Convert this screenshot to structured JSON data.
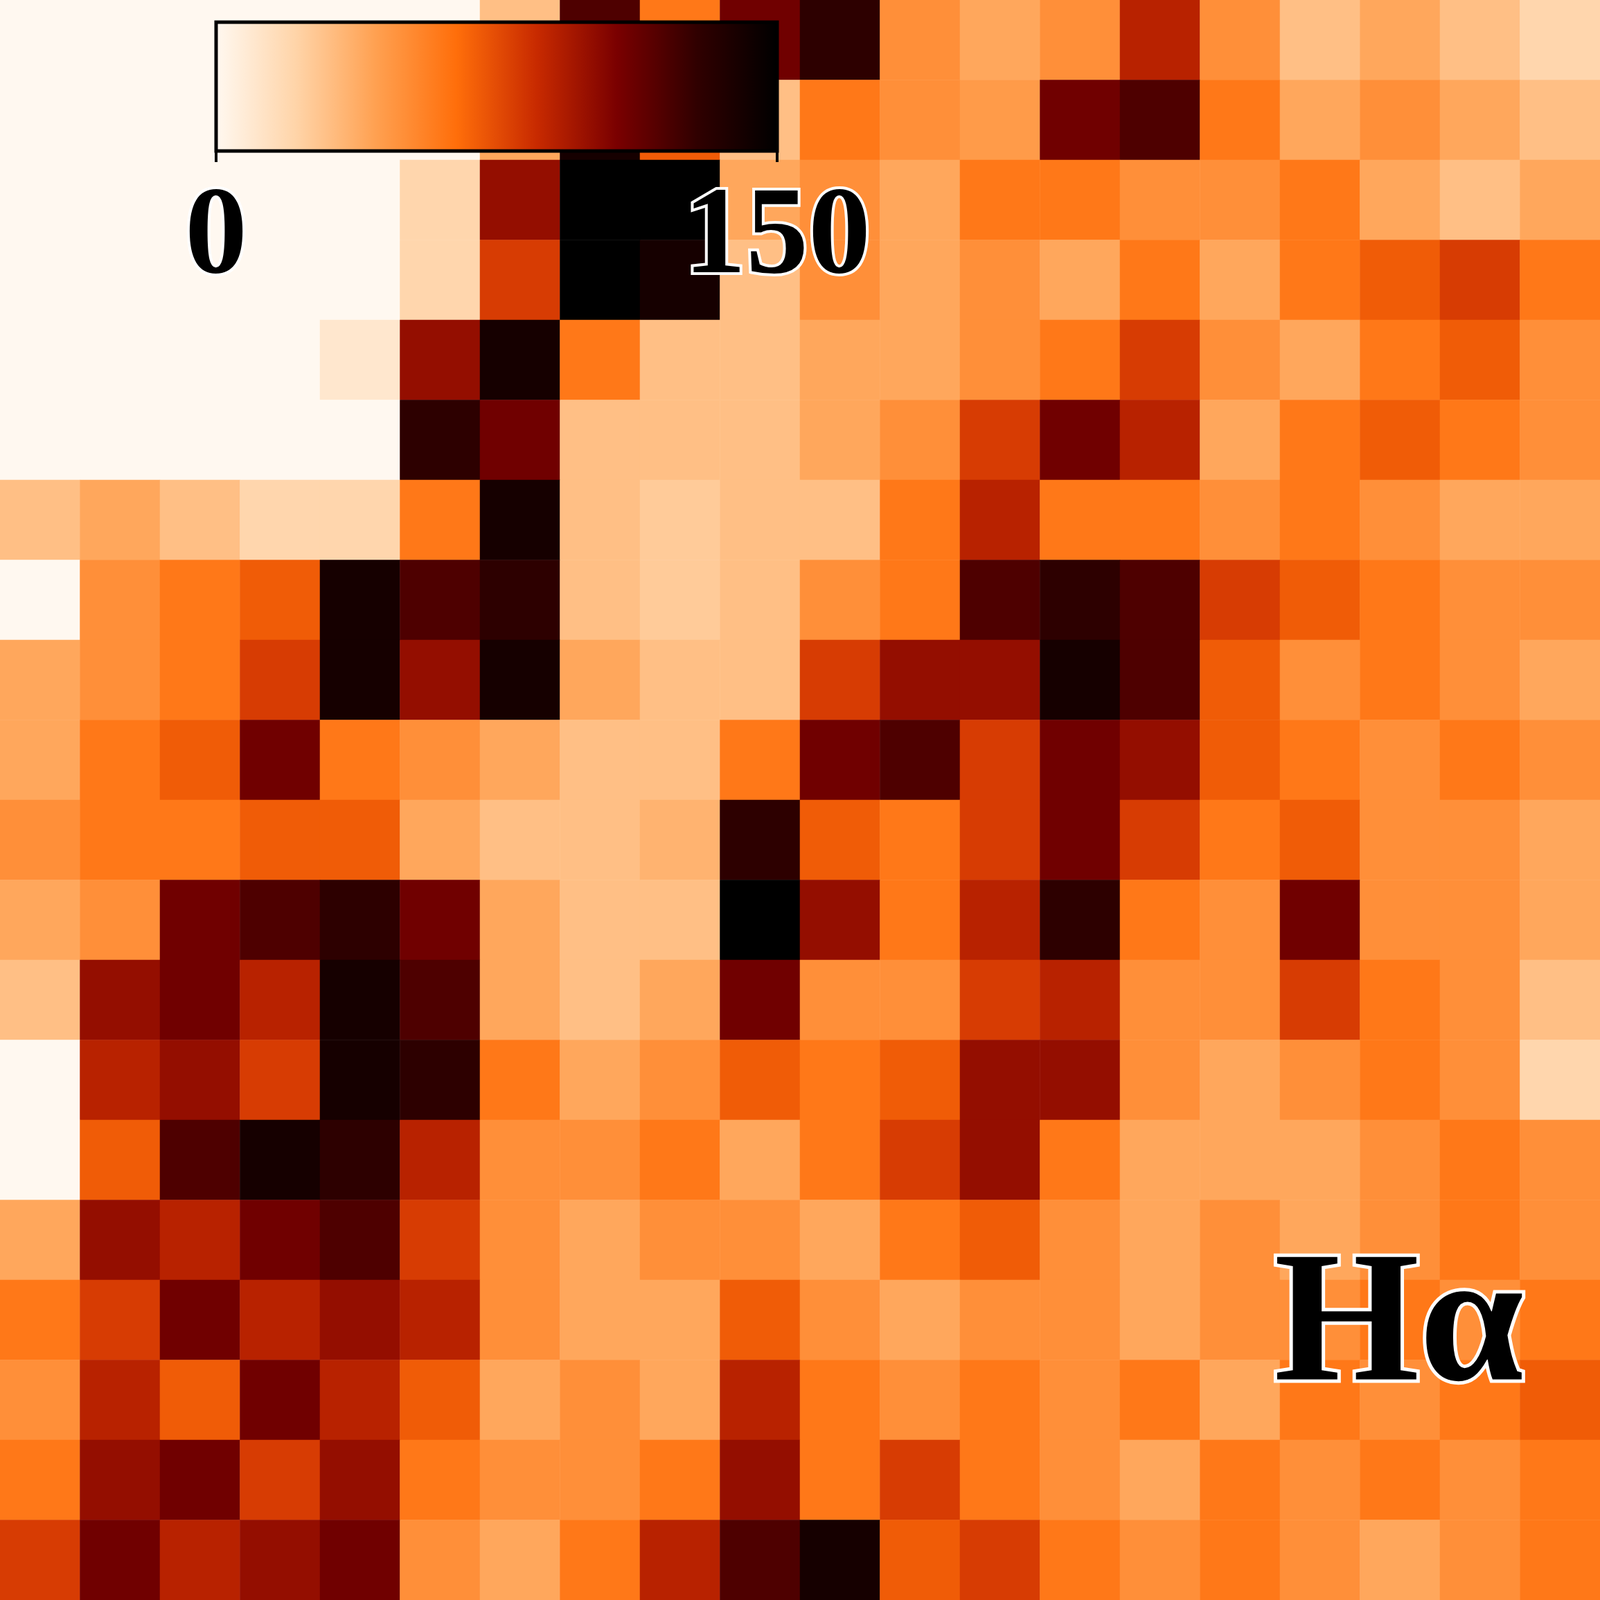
{
  "chart_data": {
    "type": "heatmap",
    "annotations": [
      "Hα"
    ],
    "colorbar_range": [
      0,
      150
    ],
    "colorbar_ticks": [
      0,
      150
    ],
    "tick_labels": false,
    "values": [
      [
        0,
        0,
        0,
        0,
        0,
        0,
        30,
        120,
        60,
        110,
        130,
        50,
        40,
        50,
        90,
        50,
        30,
        40,
        30,
        20
      ],
      [
        0,
        0,
        0,
        0,
        0,
        0,
        40,
        140,
        70,
        30,
        60,
        50,
        45,
        110,
        120,
        60,
        40,
        50,
        40,
        30
      ],
      [
        0,
        0,
        0,
        0,
        0,
        20,
        100,
        150,
        150,
        40,
        50,
        40,
        60,
        60,
        50,
        50,
        60,
        40,
        30,
        40
      ],
      [
        0,
        0,
        0,
        0,
        0,
        20,
        80,
        150,
        140,
        30,
        50,
        40,
        50,
        40,
        60,
        40,
        60,
        70,
        80,
        60
      ],
      [
        0,
        0,
        0,
        0,
        10,
        100,
        140,
        60,
        30,
        30,
        40,
        40,
        50,
        60,
        80,
        50,
        40,
        60,
        70,
        50
      ],
      [
        0,
        0,
        0,
        0,
        0,
        130,
        110,
        30,
        30,
        30,
        40,
        50,
        80,
        110,
        90,
        40,
        60,
        70,
        60,
        50
      ],
      [
        30,
        40,
        30,
        20,
        20,
        60,
        140,
        30,
        25,
        30,
        30,
        60,
        90,
        60,
        60,
        50,
        60,
        50,
        40,
        40
      ],
      [
        0,
        50,
        60,
        70,
        140,
        120,
        130,
        30,
        25,
        30,
        50,
        60,
        120,
        130,
        120,
        80,
        70,
        60,
        50,
        50
      ],
      [
        40,
        50,
        60,
        80,
        140,
        100,
        140,
        40,
        30,
        30,
        80,
        100,
        100,
        140,
        120,
        70,
        50,
        60,
        50,
        40
      ],
      [
        40,
        60,
        70,
        110,
        60,
        50,
        40,
        30,
        30,
        60,
        110,
        120,
        80,
        110,
        100,
        70,
        60,
        50,
        60,
        50
      ],
      [
        50,
        60,
        60,
        70,
        70,
        40,
        30,
        30,
        35,
        130,
        70,
        60,
        80,
        110,
        80,
        60,
        70,
        50,
        50,
        40
      ],
      [
        40,
        50,
        110,
        120,
        130,
        110,
        40,
        30,
        30,
        150,
        100,
        60,
        90,
        130,
        60,
        50,
        110,
        50,
        50,
        40
      ],
      [
        30,
        100,
        110,
        90,
        140,
        120,
        40,
        30,
        40,
        110,
        50,
        50,
        80,
        90,
        50,
        50,
        80,
        60,
        50,
        30
      ],
      [
        0,
        90,
        100,
        80,
        140,
        130,
        60,
        40,
        50,
        70,
        60,
        70,
        100,
        100,
        50,
        40,
        50,
        60,
        50,
        20
      ],
      [
        0,
        70,
        120,
        140,
        130,
        90,
        50,
        50,
        60,
        40,
        60,
        80,
        100,
        60,
        40,
        40,
        40,
        50,
        60,
        50
      ],
      [
        40,
        100,
        90,
        110,
        120,
        80,
        50,
        40,
        50,
        50,
        40,
        60,
        70,
        50,
        40,
        50,
        40,
        50,
        60,
        50
      ],
      [
        60,
        80,
        110,
        90,
        100,
        90,
        50,
        40,
        40,
        70,
        50,
        40,
        50,
        50,
        40,
        50,
        50,
        60,
        50,
        60
      ],
      [
        50,
        90,
        70,
        110,
        90,
        70,
        40,
        50,
        40,
        90,
        60,
        50,
        60,
        50,
        60,
        40,
        60,
        50,
        60,
        70
      ],
      [
        60,
        100,
        110,
        80,
        100,
        60,
        50,
        50,
        60,
        100,
        60,
        80,
        60,
        50,
        40,
        60,
        50,
        60,
        50,
        60
      ],
      [
        80,
        110,
        90,
        100,
        110,
        50,
        40,
        60,
        90,
        120,
        140,
        70,
        80,
        60,
        50,
        60,
        50,
        40,
        50,
        60
      ]
    ]
  }
}
